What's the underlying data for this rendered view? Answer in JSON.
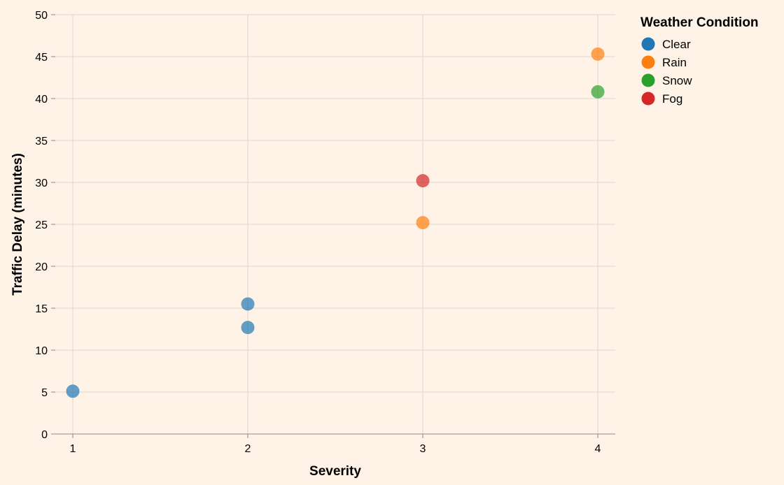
{
  "chart_data": {
    "type": "scatter",
    "title": "",
    "xlabel": "Severity",
    "ylabel": "Traffic Delay (minutes)",
    "xlim": [
      1,
      4
    ],
    "ylim": [
      0,
      50
    ],
    "x_ticks": [
      "1",
      "2",
      "3",
      "4"
    ],
    "y_ticks": [
      "0",
      "5",
      "10",
      "15",
      "20",
      "25",
      "30",
      "35",
      "40",
      "45",
      "50"
    ],
    "grid": true,
    "legend": {
      "title": "Weather Condition",
      "position": "top-right"
    },
    "series": [
      {
        "name": "Clear",
        "color": "#1f77b4",
        "points": [
          {
            "x": 1,
            "y": 5.1
          },
          {
            "x": 2,
            "y": 12.7
          },
          {
            "x": 2,
            "y": 15.5
          }
        ]
      },
      {
        "name": "Rain",
        "color": "#ff7f0e",
        "points": [
          {
            "x": 3,
            "y": 25.2
          },
          {
            "x": 4,
            "y": 45.3
          }
        ]
      },
      {
        "name": "Snow",
        "color": "#2ca02c",
        "points": [
          {
            "x": 4,
            "y": 40.8
          }
        ]
      },
      {
        "name": "Fog",
        "color": "#d62728",
        "points": [
          {
            "x": 3,
            "y": 30.2
          }
        ]
      }
    ]
  }
}
